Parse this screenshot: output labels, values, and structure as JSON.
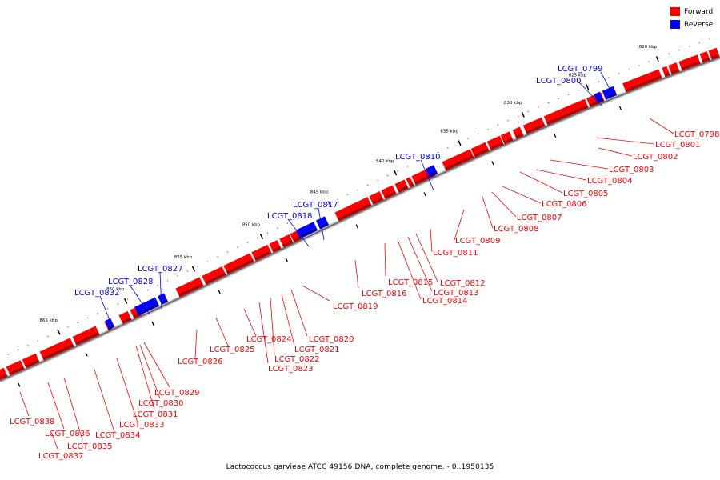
{
  "legend": {
    "forward_label": "Forward",
    "reverse_label": "Reverse",
    "forward_color": "#ff0000",
    "reverse_color": "#0000ff"
  },
  "caption": "Lactococcus garvieae ATCC 49156 DNA, complete genome. - 0..1950135",
  "axis_ticks": [
    "820 kbp",
    "825 kbp",
    "830 kbp",
    "835 kbp",
    "840 kbp",
    "845 kbp",
    "850 kbp",
    "855 kbp",
    "860 kbp",
    "865 kbp"
  ],
  "forward_genes": [
    "LCGT_0798",
    "LCGT_0801",
    "LCGT_0802",
    "LCGT_0803",
    "LCGT_0804",
    "LCGT_0805",
    "LCGT_0806",
    "LCGT_0807",
    "LCGT_0808",
    "LCGT_0809",
    "LCGT_0811",
    "LCGT_0812",
    "LCGT_0813",
    "LCGT_0814",
    "LCGT_0815",
    "LCGT_0816",
    "LCGT_0819",
    "LCGT_0820",
    "LCGT_0821",
    "LCGT_0822",
    "LCGT_0823",
    "LCGT_0824",
    "LCGT_0825",
    "LCGT_0826",
    "LCGT_0829",
    "LCGT_0830",
    "LCGT_0831",
    "LCGT_0833",
    "LCGT_0834",
    "LCGT_0835",
    "LCGT_0836",
    "LCGT_0837",
    "LCGT_0838"
  ],
  "reverse_genes": [
    "LCGT_0799",
    "LCGT_0800",
    "LCGT_0810",
    "LCGT_0817",
    "LCGT_0818",
    "LCGT_0827",
    "LCGT_0828",
    "LCGT_0832"
  ]
}
